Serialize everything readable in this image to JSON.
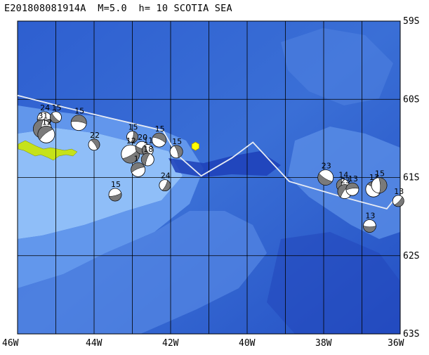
{
  "title": "E201808081914A  M=5.0  h= 10 SCOTIA SEA",
  "map": {
    "lon_range": [
      -46,
      -36
    ],
    "lat_range": [
      -63,
      -59
    ],
    "lat_labels": [
      {
        "lat": -59,
        "text": "59S"
      },
      {
        "lat": -60,
        "text": "60S"
      },
      {
        "lat": -61,
        "text": "61S"
      },
      {
        "lat": -62,
        "text": "62S"
      },
      {
        "lat": -63,
        "text": "63S"
      }
    ],
    "lon_labels": [
      {
        "lon": -46,
        "text": "46W"
      },
      {
        "lon": -44,
        "text": "44W"
      },
      {
        "lon": -42,
        "text": "42W"
      },
      {
        "lon": -40,
        "text": "40W"
      },
      {
        "lon": -38,
        "text": "38W"
      },
      {
        "lon": -36,
        "text": "36W"
      }
    ],
    "grid_lons": [
      -46,
      -45,
      -44,
      -43,
      -42,
      -41,
      -40,
      -39,
      -38,
      -37,
      -36
    ],
    "grid_lats": [
      -59,
      -60,
      -61,
      -62,
      -63
    ],
    "colors": {
      "deep": "#1d3fb8",
      "mid": "#3a6fd6",
      "shallow": "#6a9ff0",
      "shelf": "#8fbef8",
      "land": "#c6e21a",
      "plate_boundary": "#e8ecf4",
      "epicenter": "#ffff00",
      "grid": "#000000"
    },
    "plate_boundary": [
      [
        -46.0,
        -59.95
      ],
      [
        -44.8,
        -60.1
      ],
      [
        -43.5,
        -60.25
      ],
      [
        -42.2,
        -60.4
      ],
      [
        -41.85,
        -60.7
      ],
      [
        -41.2,
        -60.98
      ],
      [
        -40.4,
        -60.75
      ],
      [
        -39.85,
        -60.55
      ],
      [
        -38.9,
        -61.05
      ],
      [
        -37.5,
        -61.25
      ],
      [
        -36.35,
        -61.4
      ],
      [
        -36.1,
        -61.25
      ]
    ],
    "epicenter": {
      "lon": -41.35,
      "lat": -60.6
    },
    "events": [
      {
        "lon": -45.3,
        "lat": -60.25,
        "label": "24",
        "size": 10
      },
      {
        "lon": -45.0,
        "lat": -60.23,
        "label": "15",
        "size": 8
      },
      {
        "lon": -45.35,
        "lat": -60.38,
        "label": "31",
        "size": 13
      },
      {
        "lon": -45.25,
        "lat": -60.45,
        "label": "12",
        "size": 12
      },
      {
        "lon": -44.4,
        "lat": -60.3,
        "label": "15",
        "size": 11
      },
      {
        "lon": -44.0,
        "lat": -60.58,
        "label": "22",
        "size": 8
      },
      {
        "lon": -43.0,
        "lat": -60.48,
        "label": "15",
        "size": 8
      },
      {
        "lon": -43.05,
        "lat": -60.7,
        "label": "12",
        "size": 13
      },
      {
        "lon": -42.75,
        "lat": -60.62,
        "label": "20",
        "size": 9
      },
      {
        "lon": -42.6,
        "lat": -60.65,
        "label": "11",
        "size": 8
      },
      {
        "lon": -42.6,
        "lat": -60.77,
        "label": "18",
        "size": 9
      },
      {
        "lon": -42.85,
        "lat": -60.9,
        "label": "1",
        "size": 10
      },
      {
        "lon": -42.3,
        "lat": -60.52,
        "label": "15",
        "size": 10
      },
      {
        "lon": -41.85,
        "lat": -60.67,
        "label": "15",
        "size": 9
      },
      {
        "lon": -42.15,
        "lat": -61.1,
        "label": "24",
        "size": 8
      },
      {
        "lon": -43.45,
        "lat": -61.22,
        "label": "15",
        "size": 9
      },
      {
        "lon": -37.95,
        "lat": -61.0,
        "label": "23",
        "size": 11
      },
      {
        "lon": -37.5,
        "lat": -61.1,
        "label": "14",
        "size": 9
      },
      {
        "lon": -37.45,
        "lat": -61.18,
        "label": "23",
        "size": 10
      },
      {
        "lon": -37.25,
        "lat": -61.15,
        "label": "13",
        "size": 9
      },
      {
        "lon": -36.7,
        "lat": -61.15,
        "label": "13",
        "size": 11
      },
      {
        "lon": -36.55,
        "lat": -61.1,
        "label": "15",
        "size": 11
      },
      {
        "lon": -36.05,
        "lat": -61.3,
        "label": "13",
        "size": 8
      },
      {
        "lon": -36.8,
        "lat": -61.62,
        "label": "13",
        "size": 9
      }
    ]
  }
}
